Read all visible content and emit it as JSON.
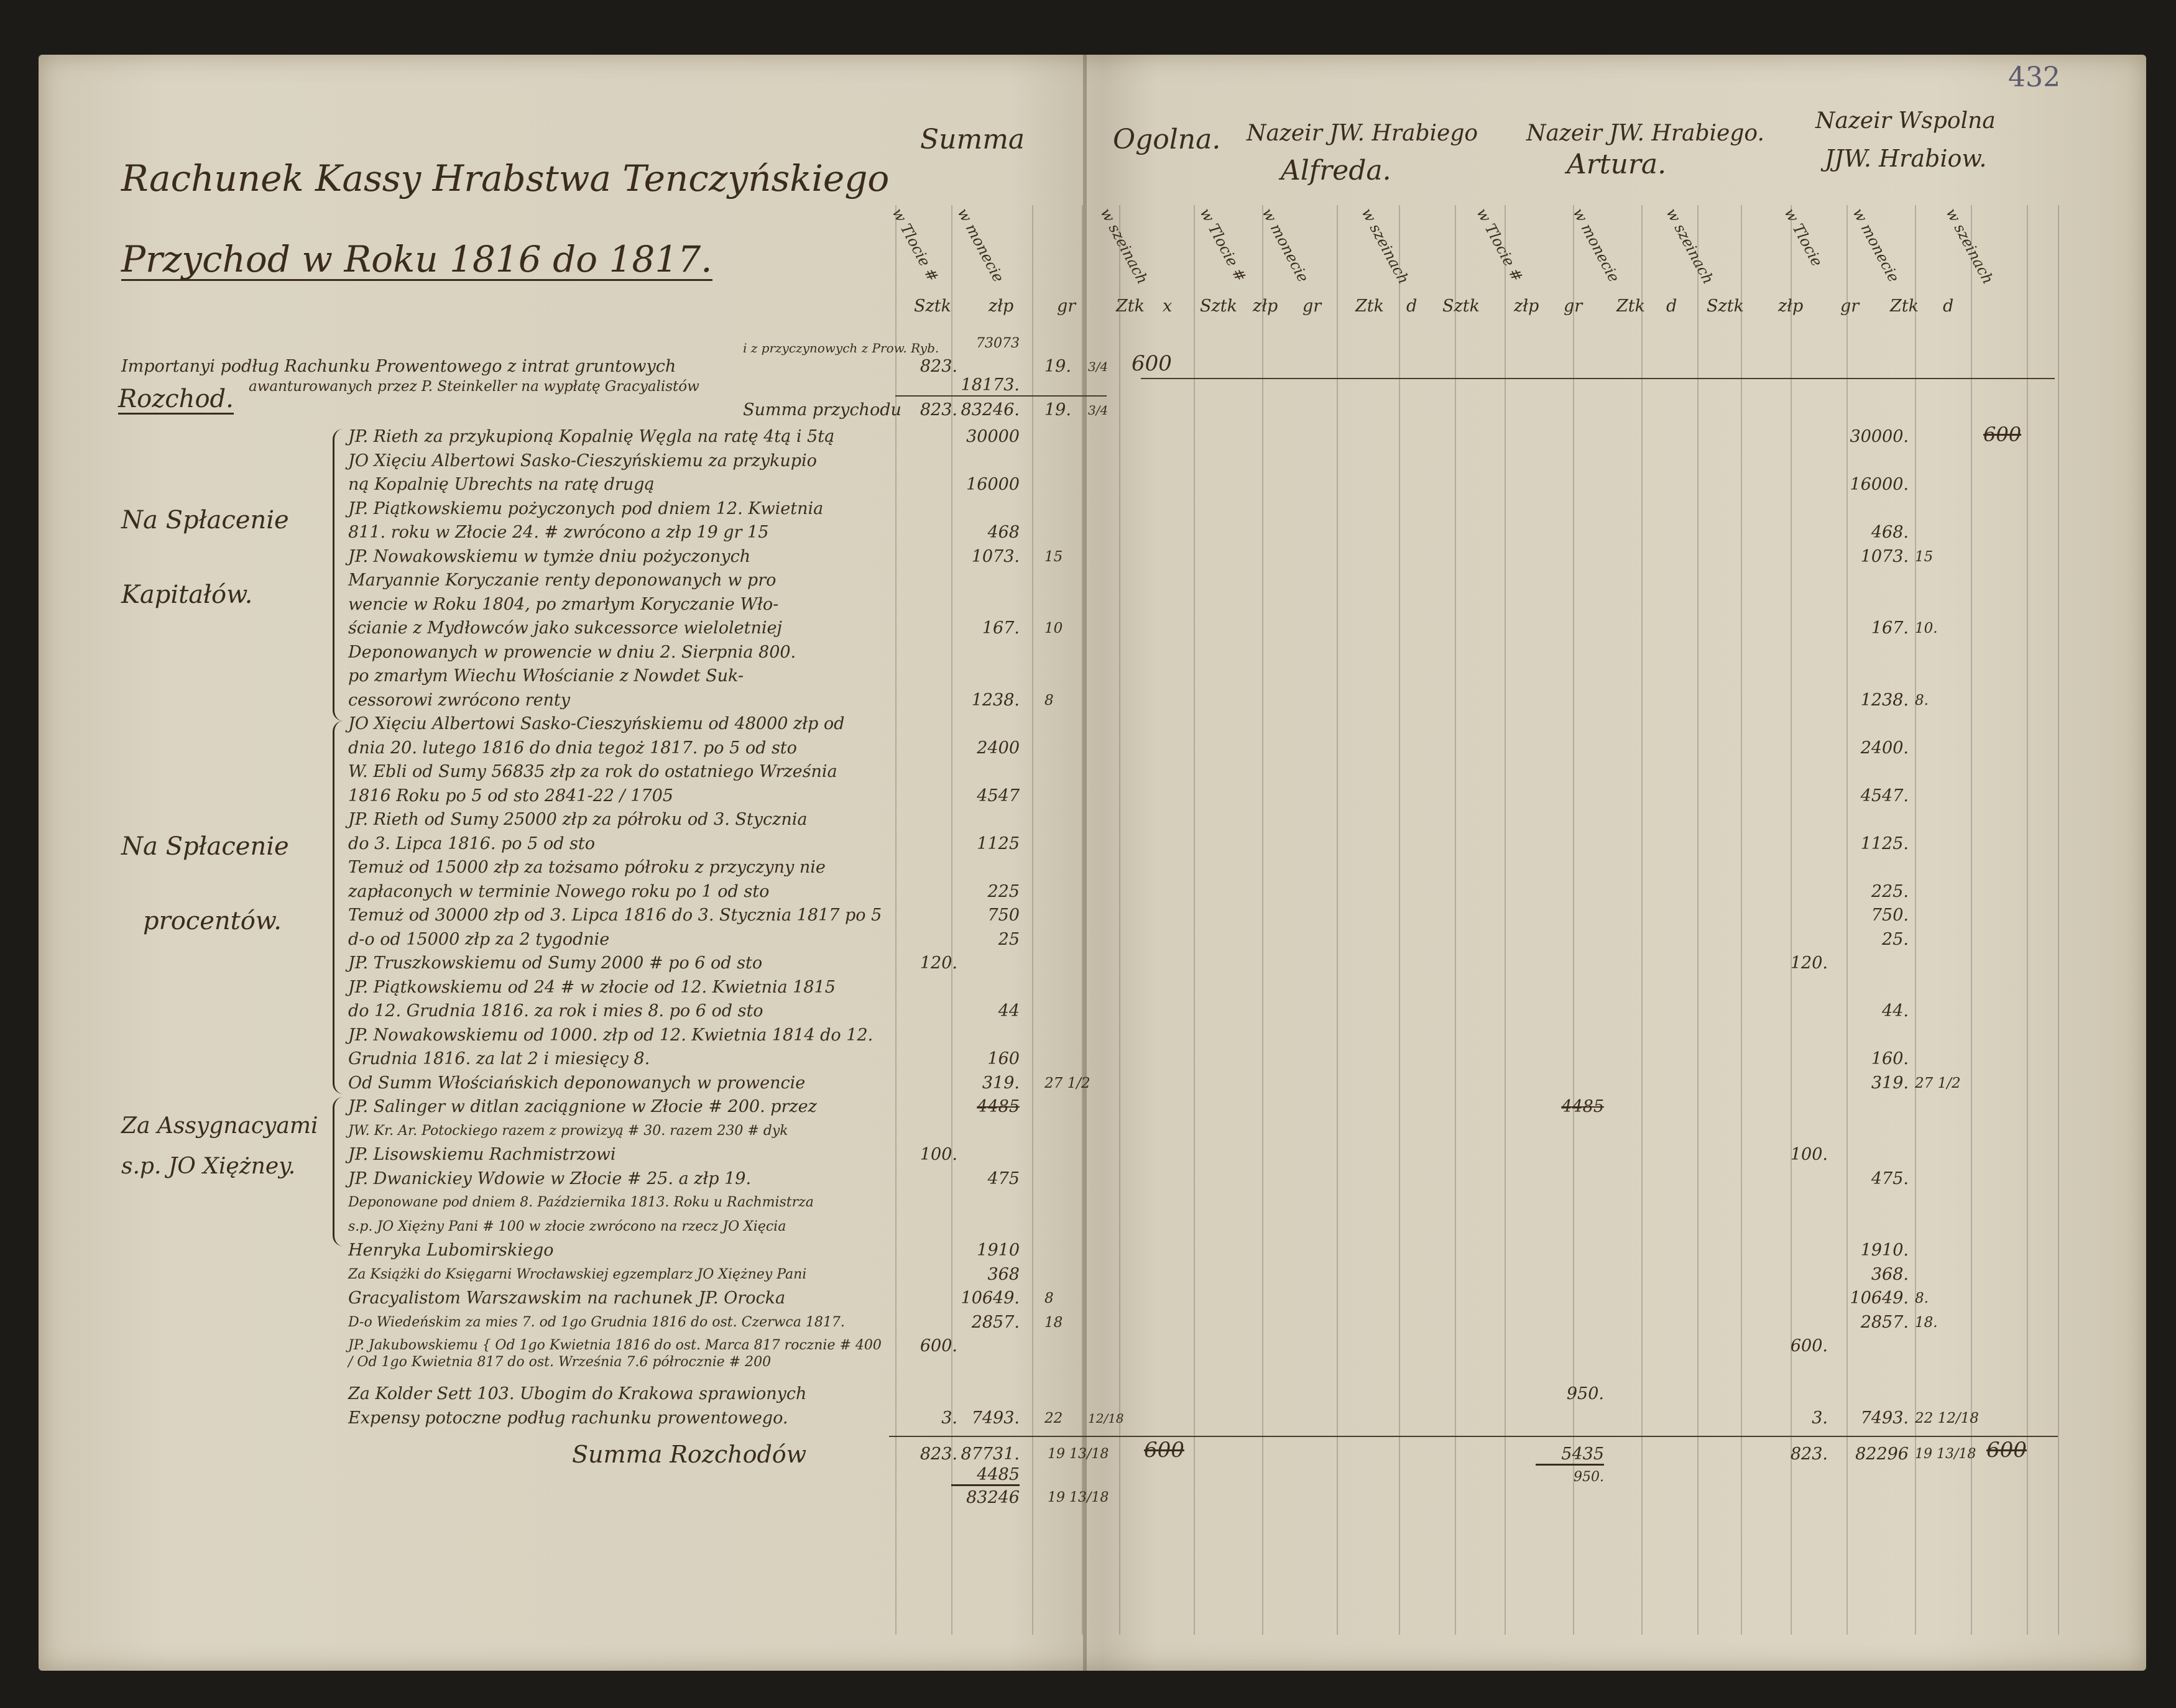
{
  "page_number": "432",
  "title": "Rachunek Kassy Hrabstwa Tenczyńskiego",
  "subtitle": "Przychod w Roku 1816 do 1817.",
  "section_rozchod": "Rozchod.",
  "headers": {
    "summa": "Summa",
    "ogolna": "Ogolna.",
    "alfred": [
      "Nazeir JW. Hrabiego",
      "Alfreda."
    ],
    "artur": [
      "Nazeir JW. Hrabiego.",
      "Artura."
    ],
    "wspolna": [
      "Nazeir Wspolna",
      "JJW. Hrabiow."
    ]
  },
  "subheaders": [
    "w Tlocie #",
    "w monecie",
    "w szeinach",
    "w Tlocie #",
    "w monecie",
    "w szeinach",
    "w Tlocie #",
    "w monecie",
    "w szeinach",
    "w Tlocie",
    "w monecie",
    "w szeinach"
  ],
  "units": [
    "Sztk",
    "złp",
    "gr",
    "Ztk",
    "x",
    "Sztk",
    "złp",
    "gr",
    "Ztk",
    "d",
    "Sztk",
    "złp",
    "gr",
    "Ztk",
    "d",
    "Sztk",
    "złp",
    "gr",
    "Ztk",
    "d"
  ],
  "przychod": {
    "line1": "Importanyi podług Rachunku Prowentowego z intrat gruntowych",
    "line1_note": "i z przyczynowych z Prow. Ryb.",
    "line2": "awanturowanych przez P. Steinkeller na wypłatę Gracyalistów",
    "amount_tl": "823.",
    "amount_zl_top": "73073",
    "amount_zl": "18173.",
    "amount_gr": "19.",
    "amount_frac": "3/4",
    "ogolna_sz": "600",
    "summa_label": "Summa przychodu",
    "summa_tl": "823.",
    "summa_zl": "83246.",
    "summa_gr": "19.",
    "summa_frac": "3/4"
  },
  "groups": [
    {
      "label": [
        "Na Spłacenie",
        "Kapitałów."
      ]
    },
    {
      "label": [
        "Na Spłacenie",
        "procentów."
      ]
    },
    {
      "label": [
        "Za Assygnacyami",
        "s.p. JO Xiężney."
      ]
    }
  ],
  "rows": [
    {
      "text": "JP. Rieth za przykupioną Kopalnię Węgla na ratę 4tą i 5tą",
      "zl": "30000",
      "w_zl": "30000.",
      "w_sz": "600",
      "w_sz_strike": true
    },
    {
      "text": "JO Xięciu Albertowi Sasko-Cieszyńskiemu za przykupio"
    },
    {
      "text": "ną Kopalnię Ubrechts na ratę drugą",
      "zl": "16000",
      "w_zl": "16000."
    },
    {
      "text": "JP. Piątkowskiemu pożyczonych pod dniem 12. Kwietnia"
    },
    {
      "text": "811. roku w Złocie 24. # zwrócono a złp 19 gr 15",
      "zl": "468",
      "w_zl": "468."
    },
    {
      "text": "JP. Nowakowskiemu w tymże dniu pożyczonych",
      "zl": "1073.",
      "gr": "15",
      "w_zl": "1073.",
      "w_gr": "15"
    },
    {
      "text": "Maryannie Koryczanie renty deponowanych w pro"
    },
    {
      "text": "wencie w Roku 1804, po zmarłym Koryczanie Wło-"
    },
    {
      "text": "ścianie z Mydłowców jako sukcessorce wieloletniej",
      "zl": "167.",
      "gr": "10",
      "w_zl": "167.",
      "w_gr": "10."
    },
    {
      "text": "Deponowanych w prowencie w dniu 2. Sierpnia 800."
    },
    {
      "text": "po zmarłym Wiechu Włościanie z Nowdet Suk-"
    },
    {
      "text": "cessorowi zwrócono renty",
      "zl": "1238.",
      "gr": "8",
      "w_zl": "1238.",
      "w_gr": "8."
    },
    {
      "text": "JO Xięciu Albertowi Sasko-Cieszyńskiemu od 48000 złp od"
    },
    {
      "text": "dnia 20. lutego 1816 do dnia tegoż 1817. po 5 od sto",
      "zl": "2400",
      "w_zl": "2400."
    },
    {
      "text": "W. Ebli od Sumy 56835 złp za rok do ostatniego Września"
    },
    {
      "text": "1816 Roku po 5 od sto  2841-22 / 1705",
      "zl": "4547",
      "w_zl": "4547."
    },
    {
      "text": "JP. Rieth od Sumy 25000 złp za półroku od 3. Stycznia"
    },
    {
      "text": "do 3. Lipca 1816. po 5 od sto",
      "zl": "1125",
      "w_zl": "1125."
    },
    {
      "text": "Temuż od 15000 złp za tożsamo półroku z przyczyny nie"
    },
    {
      "text": "zapłaconych w terminie Nowego roku po 1 od sto",
      "zl": "225",
      "w_zl": "225."
    },
    {
      "text": "Temuż od 30000 złp od 3. Lipca 1816 do 3. Stycznia 1817 po 5",
      "zl": "750",
      "w_zl": "750."
    },
    {
      "text": "d-o  od 15000 złp za 2 tygodnie",
      "zl": "25",
      "w_zl": "25."
    },
    {
      "text": "JP. Truszkowskiemu od Sumy 2000 # po 6 od sto",
      "tl": "120.",
      "w_tl": "120."
    },
    {
      "text": "JP. Piątkowskiemu od 24 # w złocie od 12. Kwietnia 1815"
    },
    {
      "text": "do 12. Grudnia 1816. za rok i mies 8. po 6 od sto",
      "zl": "44",
      "w_zl": "44."
    },
    {
      "text": "JP. Nowakowskiemu od 1000. złp od 12. Kwietnia 1814 do 12."
    },
    {
      "text": "Grudnia 1816. za lat 2 i miesięcy 8.",
      "zl": "160",
      "w_zl": "160."
    },
    {
      "text": "Od Summ Włościańskich deponowanych w prowencie",
      "zl": "319.",
      "gr": "27 1/2",
      "w_zl": "319.",
      "w_gr": "27 1/2"
    },
    {
      "text": "JP. Salinger w ditlan zaciągnione w Złocie # 200. przez",
      "zl": "4485",
      "zl_strike": true,
      "a_zl": "4485",
      "a_zl_strike": true
    },
    {
      "text": "JW. Kr. Ar. Potockiego razem z prowizyą # 30. razem 230 # dyk"
    },
    {
      "text": "JP. Lisowskiemu Rachmistrzowi",
      "tl": "100.",
      "w_tl": "100."
    },
    {
      "text": "JP. Dwanickiey Wdowie w Złocie # 25. a złp 19.",
      "zl": "475",
      "w_zl": "475."
    },
    {
      "text": "Deponowane pod dniem 8. Października 1813. Roku u Rachmistrza"
    },
    {
      "text": "s.p. JO Xiężny Pani # 100 w złocie zwrócono na rzecz JO Xięcia"
    },
    {
      "text": "Henryka Lubomirskiego",
      "zl": "1910",
      "w_zl": "1910."
    },
    {
      "text": "Za Książki do Księgarni Wrocławskiej egzemplarz JO Xiężney Pani",
      "zl": "368",
      "w_zl": "368."
    },
    {
      "text": "Gracyalistom Warszawskim na rachunek JP. Orocka",
      "zl": "10649.",
      "gr": "8",
      "w_zl": "10649.",
      "w_gr": "8."
    },
    {
      "text": "D-o Wiedeńskim za mies 7. od 1go Grudnia 1816 do ost. Czerwca 1817.",
      "zl": "2857.",
      "gr": "18",
      "w_zl": "2857.",
      "w_gr": "18."
    },
    {
      "text": "JP. Jakubowskiemu { Od 1go Kwietnia 1816 do ost. Marca 817 rocznie # 400 / Od 1go Kwietnia 817 do ost. Września 7.6 półrocznie # 200",
      "tl": "600.",
      "w_tl": "600."
    },
    {
      "text": "Za Kolder Sett 103. Ubogim do Krakowa sprawionych",
      "a_zl": "950."
    },
    {
      "text": "Expensy potoczne podług rachunku prowentowego.",
      "tl": "3.",
      "zl": "7493.",
      "gr": "22",
      "sz": "12/18",
      "w_tl": "3.",
      "w_zl": "7493.",
      "w_gr": "22 12/18"
    }
  ],
  "summa_rozchodow": {
    "label": "Summa Rozchodów",
    "tl": "823.",
    "zl": "87731.",
    "gr": "19 13/18",
    "zl_sub": "4485",
    "total_zl": "83246",
    "total_gr": "19 13/18",
    "ogolna_sz": "600",
    "artur_zl": "5435",
    "artur_sub": "950.",
    "w_tl": "823.",
    "w_zl": "82296",
    "w_gr": "19 13/18",
    "w_sz": "600"
  },
  "colors": {
    "paper": "#d8d1be",
    "ink": "#3a2c1c",
    "frame": "#1d1b18"
  }
}
